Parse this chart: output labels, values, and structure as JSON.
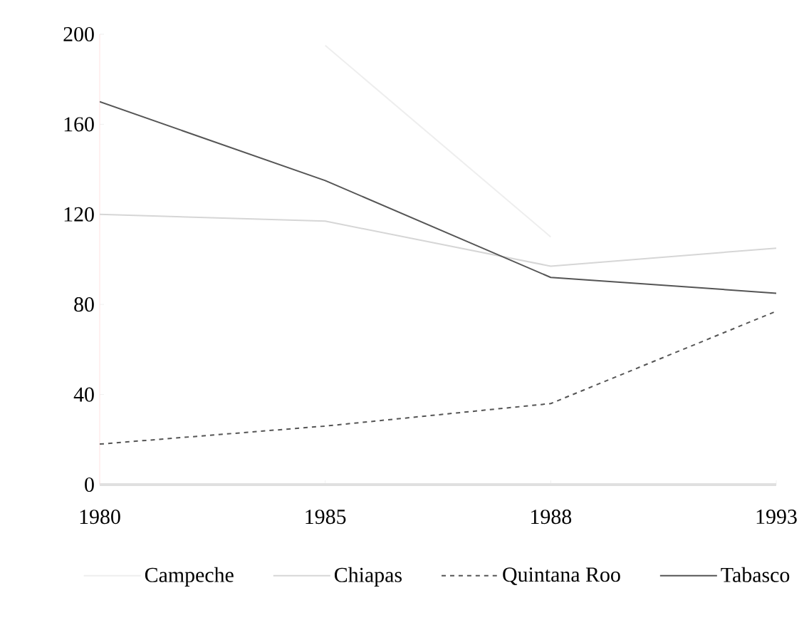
{
  "chart_data": {
    "type": "line",
    "categories": [
      "1980",
      "1985",
      "1988",
      "1993"
    ],
    "series": [
      {
        "name": "Campeche",
        "color": "#eeeeee",
        "values": [
          null,
          195,
          110,
          null
        ]
      },
      {
        "name": "Chiapas",
        "color": "#d6d6d6",
        "values": [
          120,
          117,
          97,
          105
        ]
      },
      {
        "name": "Quintana Roo",
        "color": "#555555",
        "values": [
          18,
          26,
          36,
          77
        ],
        "line_style": "dashed"
      },
      {
        "name": "Tabasco",
        "color": "#555555",
        "values": [
          170,
          135,
          92,
          85
        ]
      }
    ],
    "ylim": [
      0,
      200
    ],
    "yticks": [
      0,
      40,
      80,
      120,
      160,
      200
    ],
    "legend": "bottom",
    "grid": false
  }
}
